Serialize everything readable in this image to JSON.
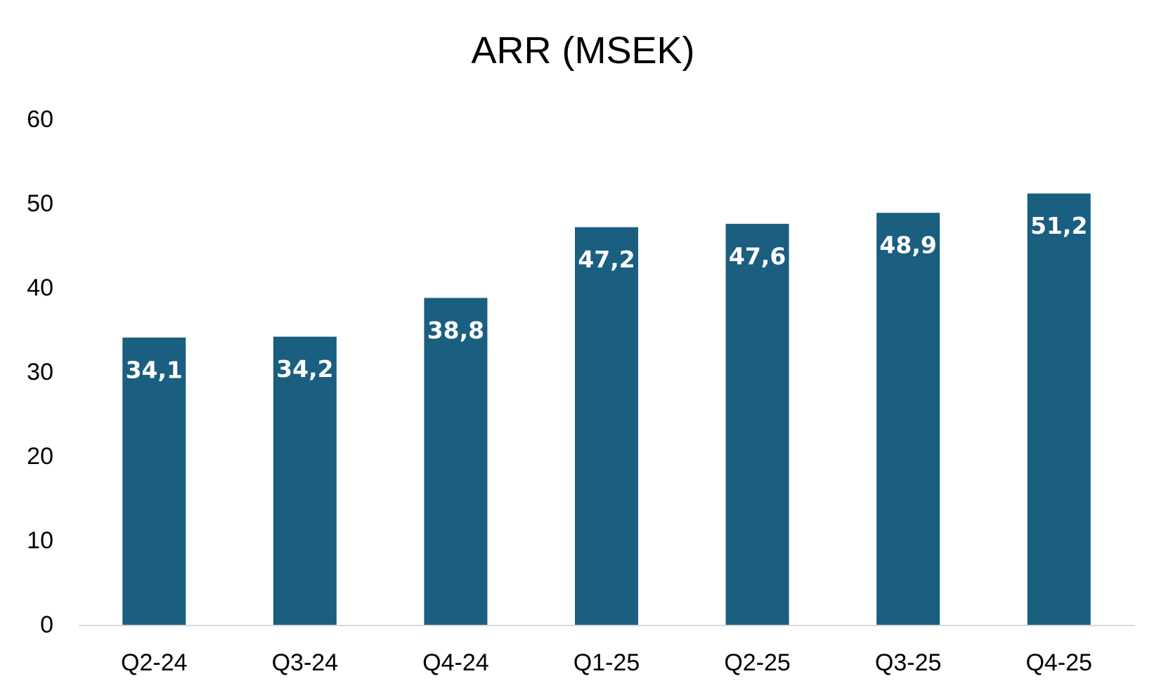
{
  "chart_data": {
    "type": "bar",
    "title": "ARR (MSEK)",
    "xlabel": "",
    "ylabel": "",
    "categories": [
      "Q2-24",
      "Q3-24",
      "Q4-24",
      "Q1-25",
      "Q2-25",
      "Q3-25",
      "Q4-25"
    ],
    "values": [
      34.1,
      34.2,
      38.8,
      47.2,
      47.6,
      48.9,
      51.2
    ],
    "data_labels": [
      "34,1",
      "34,2",
      "38,8",
      "47,2",
      "47,6",
      "48,9",
      "51,2"
    ],
    "ylim": [
      0,
      60
    ],
    "yticks": [
      0,
      10,
      20,
      30,
      40,
      50,
      60
    ],
    "ytick_labels": [
      "0",
      "10",
      "20",
      "30",
      "40",
      "50",
      "60"
    ],
    "grid": false,
    "legend": "none",
    "bar_color": "#1a5e80",
    "axis_color": "#d9d9d9",
    "label_color": "#ffffff"
  }
}
